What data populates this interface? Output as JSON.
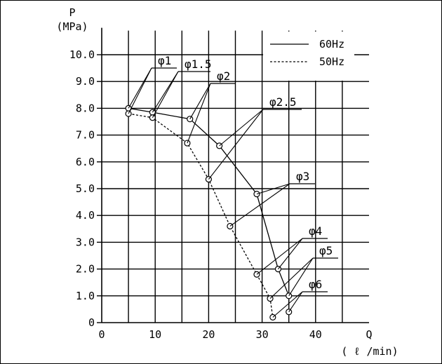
{
  "chart_data": {
    "type": "line",
    "y_axis": {
      "symbol": "P",
      "unit": "(MPa)",
      "ticks": [
        "0",
        "1.0",
        "2.0",
        "3.0",
        "4.0",
        "5.0",
        "6.0",
        "7.0",
        "8.0",
        "9.0",
        "10.0"
      ],
      "range": [
        0,
        10.9
      ]
    },
    "x_axis": {
      "symbol": "Q",
      "unit": "( ℓ /min)",
      "ticks": [
        "0",
        "10",
        "20",
        "30",
        "40"
      ],
      "range": [
        0,
        50
      ],
      "grid_step": 5
    },
    "grid": true,
    "legend_position": "top-right",
    "series": [
      {
        "name": "60Hz",
        "style": "solid",
        "points": [
          {
            "x": 5,
            "y": 8.0
          },
          {
            "x": 9.5,
            "y": 7.85
          },
          {
            "x": 16.5,
            "y": 7.6
          },
          {
            "x": 22,
            "y": 6.6
          },
          {
            "x": 29,
            "y": 4.8
          },
          {
            "x": 33,
            "y": 2.0
          },
          {
            "x": 35,
            "y": 1.0
          },
          {
            "x": 35,
            "y": 0.4
          }
        ]
      },
      {
        "name": "50Hz",
        "style": "dashed",
        "points": [
          {
            "x": 5,
            "y": 7.8
          },
          {
            "x": 9.5,
            "y": 7.65
          },
          {
            "x": 16,
            "y": 6.7
          },
          {
            "x": 20,
            "y": 5.35
          },
          {
            "x": 24,
            "y": 3.6
          },
          {
            "x": 29,
            "y": 1.8
          },
          {
            "x": 31.5,
            "y": 0.9
          },
          {
            "x": 32,
            "y": 0.2
          }
        ]
      }
    ],
    "annotations": [
      {
        "label": "φ1",
        "points": [
          0,
          0
        ]
      },
      {
        "label": "φ1.5",
        "points": [
          1,
          1
        ]
      },
      {
        "label": "φ2",
        "points": [
          2,
          2
        ]
      },
      {
        "label": "φ2.5",
        "points": [
          3,
          3
        ]
      },
      {
        "label": "φ3",
        "points": [
          4,
          4
        ]
      },
      {
        "label": "φ4",
        "points": [
          5,
          5
        ]
      },
      {
        "label": "φ5",
        "points": [
          6,
          6
        ]
      },
      {
        "label": "φ6",
        "points": [
          7,
          7
        ]
      }
    ]
  }
}
